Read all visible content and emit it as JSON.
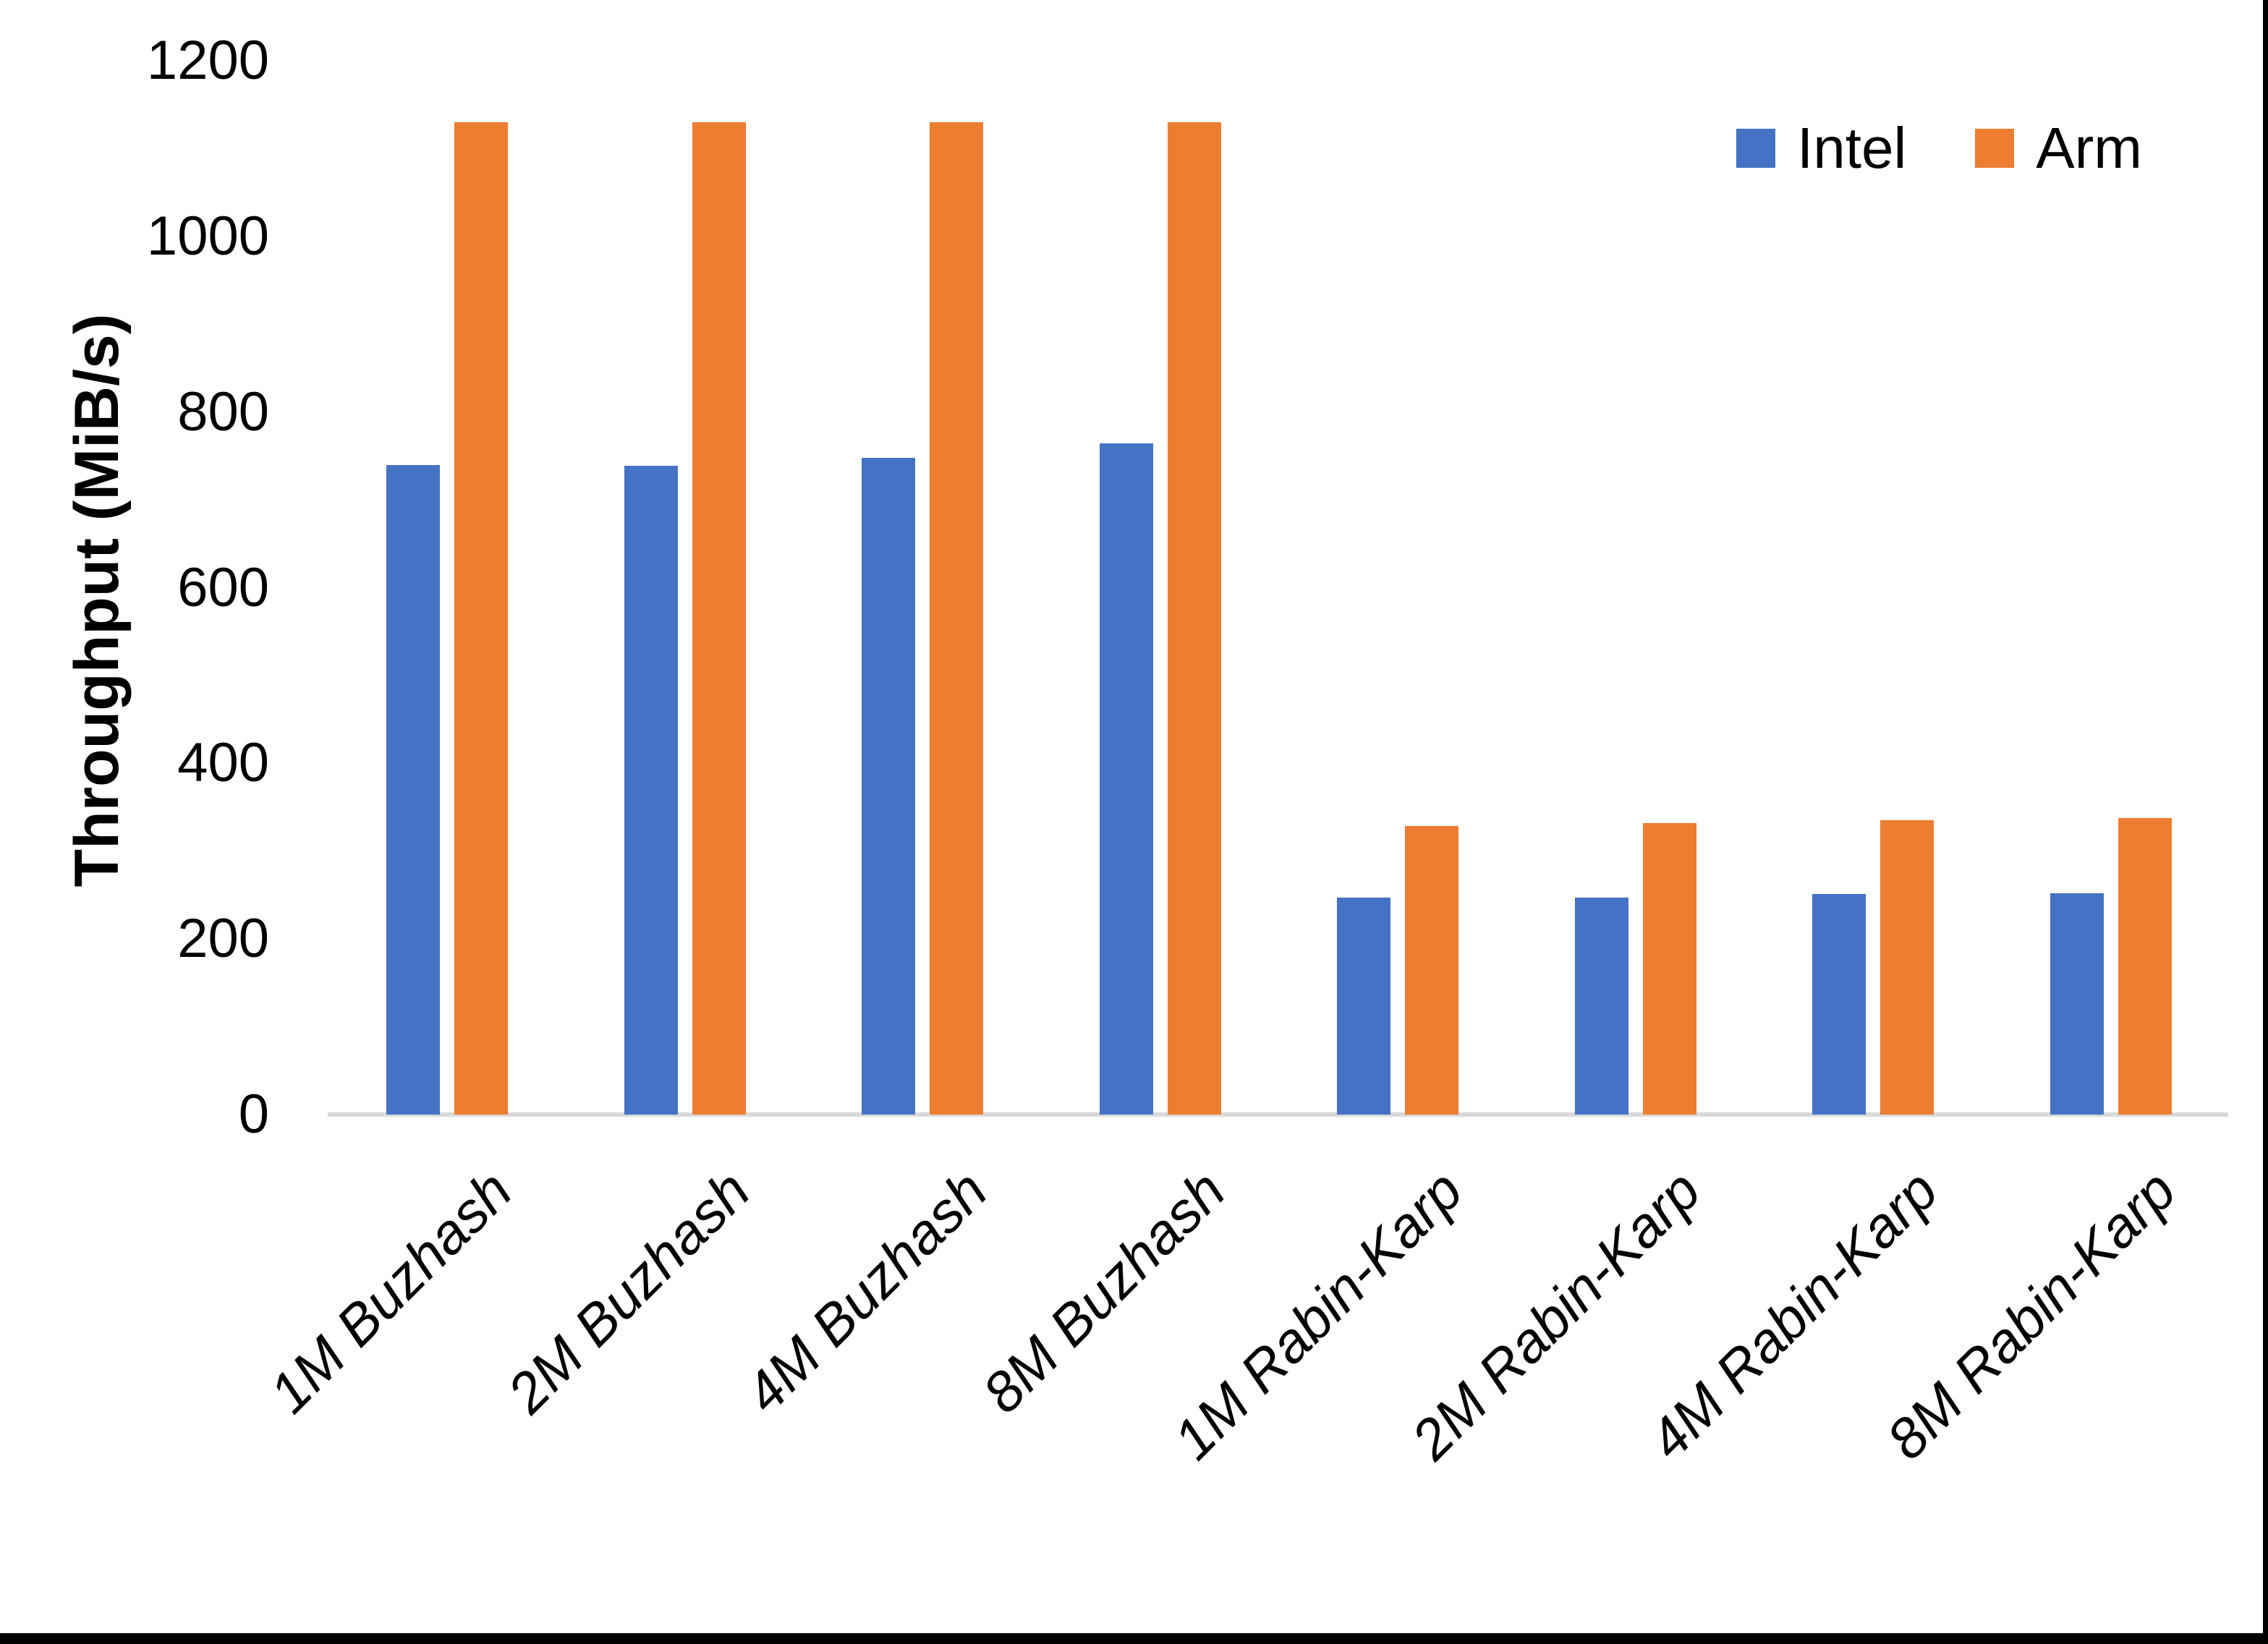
{
  "chart_data": {
    "type": "bar",
    "title": "",
    "xlabel": "",
    "ylabel": "Throughput (MiB/s)",
    "ylim": [
      0,
      1200
    ],
    "yticks": [
      0,
      200,
      400,
      600,
      800,
      1000,
      1200
    ],
    "grid": false,
    "legend_position": "top-right",
    "categories": [
      "1M Buzhash",
      "2M Buzhash",
      "4M Buzhash",
      "8M Buzhash",
      "1M Rabin-Karp",
      "2M Rabin-Karp",
      "4M Rabin-Karp",
      "8M Rabin-Karp"
    ],
    "series": [
      {
        "name": "Intel",
        "color": "#4472C4",
        "values": [
          740,
          739,
          748,
          764,
          247,
          247,
          251,
          252
        ]
      },
      {
        "name": "Arm",
        "color": "#ED7D31",
        "values": [
          1130,
          1130,
          1130,
          1130,
          329,
          332,
          335,
          338
        ]
      }
    ]
  },
  "legend": {
    "items": [
      {
        "label": "Intel",
        "color": "#4472C4"
      },
      {
        "label": "Arm",
        "color": "#ED7D31"
      }
    ]
  },
  "colors": {
    "axis_line": "#D9D9D9",
    "text": "#000000",
    "background": "#FFFFFF",
    "window_edge": "#000000"
  }
}
